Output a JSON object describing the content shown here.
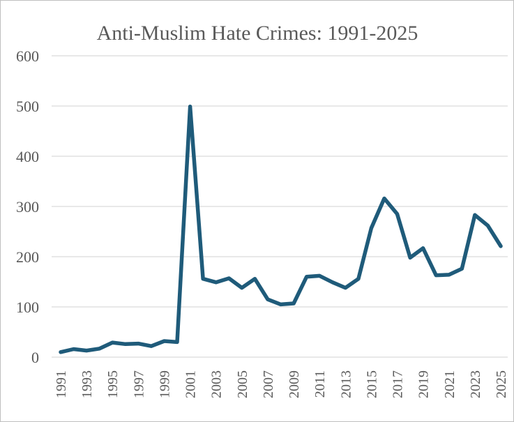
{
  "chart_data": {
    "type": "line",
    "title": "Anti-Muslim Hate Crimes: 1991-2025",
    "xlabel": "",
    "ylabel": "",
    "ylim": [
      0,
      600
    ],
    "yticks": [
      "0",
      "100",
      "200",
      "300",
      "400",
      "500",
      "600"
    ],
    "grid": true,
    "legend": "none",
    "x": [
      1991,
      1992,
      1993,
      1994,
      1995,
      1996,
      1997,
      1998,
      1999,
      2000,
      2001,
      2002,
      2003,
      2004,
      2005,
      2006,
      2007,
      2008,
      2009,
      2010,
      2011,
      2012,
      2013,
      2014,
      2015,
      2016,
      2017,
      2018,
      2019,
      2020,
      2021,
      2022,
      2023,
      2024,
      2025
    ],
    "xtick_labels": [
      "1991",
      "1993",
      "1995",
      "1997",
      "1999",
      "2001",
      "2003",
      "2005",
      "2007",
      "2009",
      "2011",
      "2013",
      "2015",
      "2017",
      "2019",
      "2021",
      "2023",
      "2025"
    ],
    "series": [
      {
        "color": "#1f5b7a",
        "values": [
          10,
          16,
          13,
          17,
          29,
          26,
          27,
          22,
          32,
          30,
          499,
          156,
          149,
          157,
          138,
          156,
          115,
          105,
          107,
          160,
          162,
          149,
          138,
          156,
          257,
          316,
          285,
          198,
          217,
          163,
          164,
          176,
          283,
          262,
          221
        ]
      }
    ]
  }
}
